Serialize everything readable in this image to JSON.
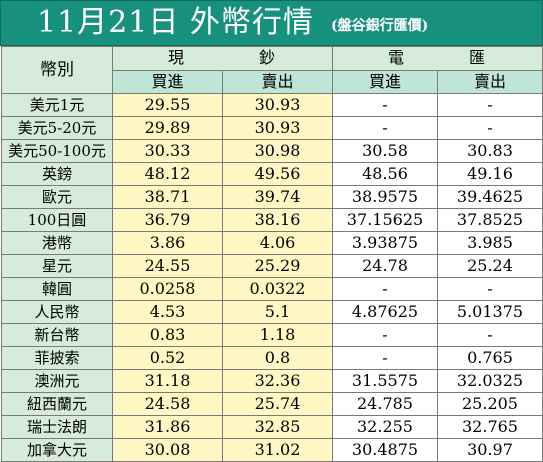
{
  "title": {
    "main": "11月21日 外幣行情",
    "sub": "(盤谷銀行匯價)"
  },
  "headers": {
    "currency": "幣別",
    "cash_group_left": "現",
    "cash_group_right": "鈔",
    "wire_group_left": "電",
    "wire_group_right": "匯",
    "buy": "買進",
    "sell": "賣出"
  },
  "rows": [
    {
      "currency": "美元1元",
      "cash_buy": "29.55",
      "cash_sell": "30.93",
      "wire_buy": "-",
      "wire_sell": "-"
    },
    {
      "currency": "美元5-20元",
      "cash_buy": "29.89",
      "cash_sell": "30.93",
      "wire_buy": "-",
      "wire_sell": "-"
    },
    {
      "currency": "美元50-100元",
      "cash_buy": "30.33",
      "cash_sell": "30.98",
      "wire_buy": "30.58",
      "wire_sell": "30.83"
    },
    {
      "currency": "英鎊",
      "cash_buy": "48.12",
      "cash_sell": "49.56",
      "wire_buy": "48.56",
      "wire_sell": "49.16"
    },
    {
      "currency": "歐元",
      "cash_buy": "38.71",
      "cash_sell": "39.74",
      "wire_buy": "38.9575",
      "wire_sell": "39.4625"
    },
    {
      "currency": "100日圓",
      "cash_buy": "36.79",
      "cash_sell": "38.16",
      "wire_buy": "37.15625",
      "wire_sell": "37.8525"
    },
    {
      "currency": "港幣",
      "cash_buy": "3.86",
      "cash_sell": "4.06",
      "wire_buy": "3.93875",
      "wire_sell": "3.985"
    },
    {
      "currency": "星元",
      "cash_buy": "24.55",
      "cash_sell": "25.29",
      "wire_buy": "24.78",
      "wire_sell": "25.24"
    },
    {
      "currency": "韓圓",
      "cash_buy": "0.0258",
      "cash_sell": "0.0322",
      "wire_buy": "-",
      "wire_sell": "-"
    },
    {
      "currency": "人民幣",
      "cash_buy": "4.53",
      "cash_sell": "5.1",
      "wire_buy": "4.87625",
      "wire_sell": "5.01375"
    },
    {
      "currency": "新台幣",
      "cash_buy": "0.83",
      "cash_sell": "1.18",
      "wire_buy": "-",
      "wire_sell": "-"
    },
    {
      "currency": "菲披索",
      "cash_buy": "0.52",
      "cash_sell": "0.8",
      "wire_buy": "-",
      "wire_sell": "0.765"
    },
    {
      "currency": "澳洲元",
      "cash_buy": "31.18",
      "cash_sell": "32.36",
      "wire_buy": "31.5575",
      "wire_sell": "32.0325"
    },
    {
      "currency": "紐西蘭元",
      "cash_buy": "24.58",
      "cash_sell": "25.74",
      "wire_buy": "24.785",
      "wire_sell": "25.205"
    },
    {
      "currency": "瑞士法朗",
      "cash_buy": "31.86",
      "cash_sell": "32.85",
      "wire_buy": "32.255",
      "wire_sell": "32.765"
    },
    {
      "currency": "加拿大元",
      "cash_buy": "30.08",
      "cash_sell": "31.02",
      "wire_buy": "30.4875",
      "wire_sell": "30.97"
    }
  ]
}
